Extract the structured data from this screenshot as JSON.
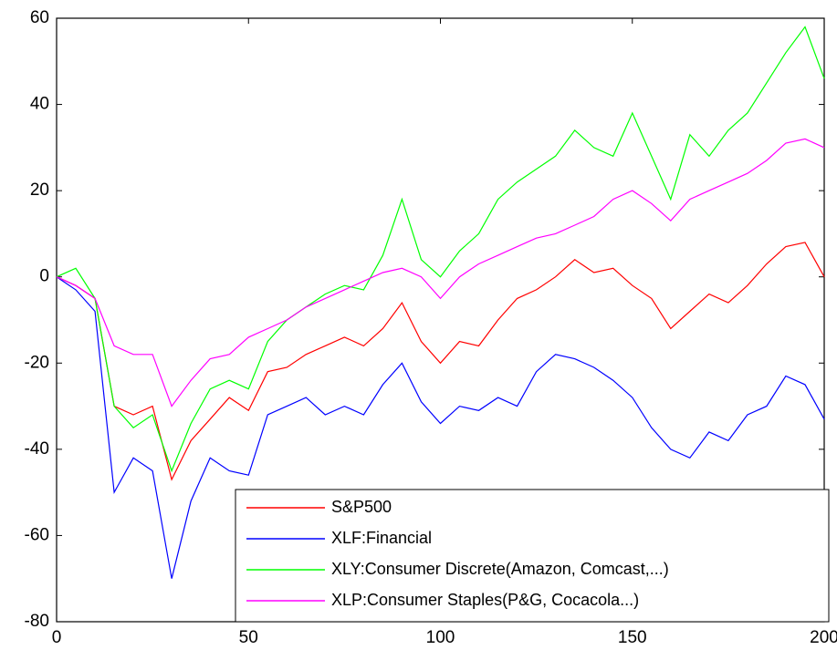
{
  "chart_data": {
    "type": "line",
    "x": [
      0,
      5,
      10,
      15,
      20,
      25,
      30,
      35,
      40,
      45,
      50,
      55,
      60,
      65,
      70,
      75,
      80,
      85,
      90,
      95,
      100,
      105,
      110,
      115,
      120,
      125,
      130,
      135,
      140,
      145,
      150,
      155,
      160,
      165,
      170,
      175,
      180,
      185,
      190,
      195,
      200
    ],
    "series": [
      {
        "name": "S&P500",
        "color": "#ff0000",
        "values": [
          0,
          -2,
          -5,
          -30,
          -32,
          -30,
          -47,
          -38,
          -33,
          -28,
          -31,
          -22,
          -21,
          -18,
          -16,
          -14,
          -16,
          -12,
          -6,
          -15,
          -20,
          -15,
          -16,
          -10,
          -5,
          -3,
          0,
          4,
          1,
          2,
          -2,
          -5,
          -12,
          -8,
          -4,
          -6,
          -2,
          3,
          7,
          8,
          0
        ]
      },
      {
        "name": "XLF:Financial",
        "color": "#0000ff",
        "values": [
          0,
          -3,
          -8,
          -50,
          -42,
          -45,
          -70,
          -52,
          -42,
          -45,
          -46,
          -32,
          -30,
          -28,
          -32,
          -30,
          -32,
          -25,
          -20,
          -29,
          -34,
          -30,
          -31,
          -28,
          -30,
          -22,
          -18,
          -19,
          -21,
          -24,
          -28,
          -35,
          -40,
          -42,
          -36,
          -38,
          -32,
          -30,
          -23,
          -25,
          -33
        ]
      },
      {
        "name": "XLY:Consumer Discrete(Amazon, Comcast,...)",
        "color": "#00ff00",
        "values": [
          0,
          2,
          -5,
          -30,
          -35,
          -32,
          -45,
          -34,
          -26,
          -24,
          -26,
          -15,
          -10,
          -7,
          -4,
          -2,
          -3,
          5,
          18,
          4,
          0,
          6,
          10,
          18,
          22,
          25,
          28,
          34,
          30,
          28,
          38,
          28,
          18,
          33,
          28,
          34,
          38,
          45,
          52,
          58,
          46
        ]
      },
      {
        "name": "XLP:Consumer Staples(P&G, Cocacola...)",
        "color": "#ff00ff",
        "values": [
          0,
          -2,
          -5,
          -16,
          -18,
          -18,
          -30,
          -24,
          -19,
          -18,
          -14,
          -12,
          -10,
          -7,
          -5,
          -3,
          -1,
          1,
          2,
          0,
          -5,
          0,
          3,
          5,
          7,
          9,
          10,
          12,
          14,
          18,
          20,
          17,
          13,
          18,
          20,
          22,
          24,
          27,
          31,
          32,
          30
        ]
      }
    ],
    "xlim": [
      0,
      200
    ],
    "xticks": [
      0,
      50,
      100,
      150,
      200
    ],
    "ylim": [
      -80,
      60
    ],
    "yticks": [
      -80,
      -60,
      -40,
      -20,
      0,
      20,
      40,
      60
    ],
    "grid": false,
    "legend": "lower right"
  }
}
